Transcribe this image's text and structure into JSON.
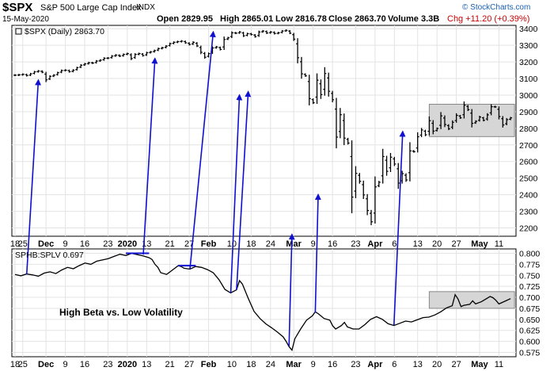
{
  "header": {
    "symbol": "$SPX",
    "name": "S&P 500 Large Cap Index",
    "exchange": "INDX",
    "date": "15-May-2020",
    "open": "Open 2829.95",
    "high": "High 2865.01",
    "low": "Low 2816.78",
    "close": "Close 2863.70",
    "volume": "Volume 3.3B",
    "chg": "Chg +11.20 (+0.39%)",
    "chg_color": "#cc0000",
    "brand": "© StockCharts.com",
    "brand_color": "#1a5fb4"
  },
  "chart_data": [
    {
      "type": "ohlc",
      "legend": "$SPX (Daily) 2863.70",
      "ylim": [
        2150,
        3420
      ],
      "yticks": [
        2200,
        2300,
        2400,
        2500,
        2600,
        2700,
        2800,
        2900,
        3000,
        3100,
        3200,
        3300,
        3400
      ],
      "x_tick_labels": [
        "18",
        "25",
        "Dec",
        "9",
        "16",
        "23",
        "2020",
        "13",
        "21",
        "27",
        "Feb",
        "10",
        "18",
        "24",
        "Mar",
        "9",
        "16",
        "23",
        "Apr",
        "6",
        "13",
        "20",
        "27",
        "May",
        "11"
      ],
      "x_tick_bold": [
        "Dec",
        "2020",
        "Feb",
        "Mar",
        "Apr",
        "May"
      ],
      "closes": [
        3120,
        3122,
        3125,
        3118,
        3128,
        3140,
        3145,
        3138,
        3092,
        3113,
        3120,
        3135,
        3148,
        3150,
        3141,
        3150,
        3165,
        3180,
        3188,
        3195,
        3193,
        3205,
        3210,
        3222,
        3223,
        3235,
        3241,
        3235,
        3245,
        3250,
        3220,
        3245,
        3250,
        3238,
        3255,
        3260,
        3268,
        3280,
        3285,
        3295,
        3310,
        3318,
        3322,
        3325,
        3315,
        3305,
        3318,
        3296,
        3258,
        3228,
        3250,
        3284,
        3290,
        3275,
        3335,
        3345,
        3375,
        3373,
        3380,
        3357,
        3370,
        3365,
        3352,
        3380,
        3386,
        3374,
        3380,
        3371,
        3375,
        3386,
        3390,
        3373,
        3337,
        3225,
        3128,
        3116,
        2979,
        2954,
        3090,
        3003,
        3130,
        3023,
        2972,
        2747,
        2882,
        2741,
        2711,
        2386,
        2529,
        2481,
        2399,
        2305,
        2237,
        2447,
        2475,
        2630,
        2541,
        2626,
        2585,
        2470,
        2527,
        2489,
        2664,
        2659,
        2749,
        2790,
        2761,
        2846,
        2783,
        2799,
        2875,
        2823,
        2797,
        2836,
        2878,
        2863,
        2939,
        2912,
        2830,
        2842,
        2868,
        2848,
        2881,
        2930,
        2929,
        2871,
        2820,
        2852,
        2863
      ],
      "annotation_box_color": "#d6d6d6",
      "arrow_color": "#1010d0"
    },
    {
      "type": "line",
      "legend": "SPHB:SPLV 0.697",
      "ylim": [
        0.565,
        0.81
      ],
      "yticks": [
        0.8,
        0.775,
        0.75,
        0.725,
        0.7,
        0.675,
        0.65,
        0.625,
        0.6,
        0.575
      ],
      "ytick_labels": [
        "0.800",
        "0.775",
        "0.750",
        "0.725",
        "0.700",
        "0.675",
        "0.650",
        "0.625",
        "0.600",
        "0.575"
      ],
      "annotation": "High Beta vs. Low Volatility",
      "points": [
        [
          0,
          0.752
        ],
        [
          2,
          0.749
        ],
        [
          4,
          0.753
        ],
        [
          6,
          0.751
        ],
        [
          8,
          0.748
        ],
        [
          10,
          0.755
        ],
        [
          12,
          0.758
        ],
        [
          14,
          0.754
        ],
        [
          16,
          0.762
        ],
        [
          18,
          0.768
        ],
        [
          20,
          0.765
        ],
        [
          22,
          0.772
        ],
        [
          24,
          0.778
        ],
        [
          26,
          0.775
        ],
        [
          28,
          0.782
        ],
        [
          30,
          0.785
        ],
        [
          32,
          0.788
        ],
        [
          34,
          0.793
        ],
        [
          36,
          0.798
        ],
        [
          38,
          0.795
        ],
        [
          40,
          0.8
        ],
        [
          42,
          0.797
        ],
        [
          44,
          0.794
        ],
        [
          46,
          0.79
        ],
        [
          47,
          0.786
        ],
        [
          48,
          0.775
        ],
        [
          49,
          0.768
        ],
        [
          50,
          0.756
        ],
        [
          52,
          0.752
        ],
        [
          54,
          0.762
        ],
        [
          56,
          0.772
        ],
        [
          57,
          0.77
        ],
        [
          58,
          0.766
        ],
        [
          60,
          0.764
        ],
        [
          62,
          0.77
        ],
        [
          64,
          0.768
        ],
        [
          66,
          0.763
        ],
        [
          68,
          0.756
        ],
        [
          70,
          0.74
        ],
        [
          72,
          0.718
        ],
        [
          74,
          0.71
        ],
        [
          76,
          0.717
        ],
        [
          77,
          0.738
        ],
        [
          78,
          0.73
        ],
        [
          80,
          0.698
        ],
        [
          82,
          0.668
        ],
        [
          84,
          0.652
        ],
        [
          86,
          0.64
        ],
        [
          88,
          0.631
        ],
        [
          90,
          0.621
        ],
        [
          92,
          0.61
        ],
        [
          93,
          0.6
        ],
        [
          94,
          0.588
        ],
        [
          95,
          0.58
        ],
        [
          96,
          0.606
        ],
        [
          98,
          0.628
        ],
        [
          100,
          0.648
        ],
        [
          102,
          0.658
        ],
        [
          103,
          0.667
        ],
        [
          104,
          0.663
        ],
        [
          106,
          0.652
        ],
        [
          108,
          0.648
        ],
        [
          109,
          0.635
        ],
        [
          110,
          0.628
        ],
        [
          112,
          0.636
        ],
        [
          113,
          0.643
        ],
        [
          114,
          0.633
        ],
        [
          116,
          0.628
        ],
        [
          118,
          0.628
        ],
        [
          120,
          0.638
        ],
        [
          122,
          0.65
        ],
        [
          124,
          0.656
        ],
        [
          126,
          0.65
        ],
        [
          128,
          0.64
        ],
        [
          130,
          0.636
        ],
        [
          132,
          0.641
        ],
        [
          134,
          0.646
        ],
        [
          136,
          0.644
        ],
        [
          138,
          0.649
        ],
        [
          140,
          0.654
        ],
        [
          142,
          0.655
        ],
        [
          144,
          0.66
        ],
        [
          146,
          0.667
        ],
        [
          148,
          0.676
        ],
        [
          150,
          0.681
        ],
        [
          151,
          0.706
        ],
        [
          152,
          0.696
        ],
        [
          153,
          0.679
        ],
        [
          154,
          0.682
        ],
        [
          156,
          0.684
        ],
        [
          157,
          0.692
        ],
        [
          158,
          0.685
        ],
        [
          160,
          0.69
        ],
        [
          162,
          0.698
        ],
        [
          163,
          0.702
        ],
        [
          164,
          0.699
        ],
        [
          165,
          0.693
        ],
        [
          166,
          0.685
        ],
        [
          168,
          0.691
        ],
        [
          170,
          0.697
        ]
      ]
    }
  ]
}
